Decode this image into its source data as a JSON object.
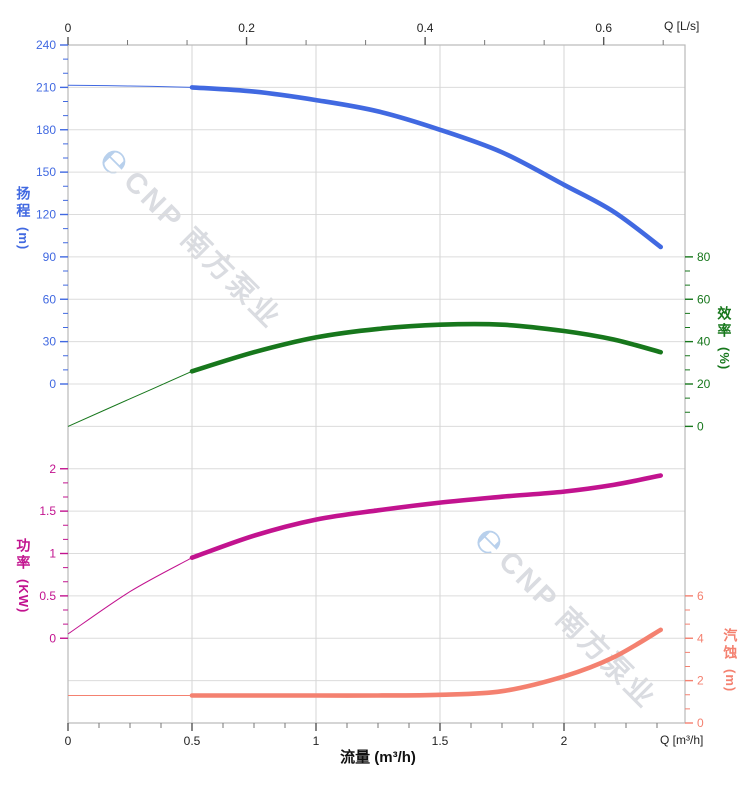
{
  "watermarks": {
    "logo_glyph": "℮",
    "text": "CNP 南方泵业"
  },
  "chart_data": {
    "type": "line",
    "title": "",
    "grid": true,
    "legend": "none",
    "x_axis": {
      "bottom_label": "流量 (m³/h)",
      "bottom_unit": "Q [m³/h]",
      "bottom_ticks": [
        0,
        0.5,
        1,
        1.5,
        2
      ],
      "bottom_minor_per_major": 3,
      "top_unit": "Q [L/s]",
      "top_ticks": [
        0,
        0.2,
        0.4,
        0.6
      ],
      "top_minor_per_major": 2,
      "m3h_per_ls": 3.6,
      "x_max_m3h": 2.49
    },
    "y_axes": [
      {
        "id": "head",
        "label": "扬程",
        "unit": "(m)",
        "side": "left",
        "color": "#4169E1",
        "ticks": [
          240,
          210,
          180,
          150,
          120,
          90,
          60,
          30,
          0
        ],
        "top_row": 0,
        "bottom_row": 8,
        "minor_per_major": 2
      },
      {
        "id": "efficiency",
        "label": "效率",
        "unit": "(%)",
        "side": "right",
        "color": "#17771C",
        "ticks": [
          80,
          60,
          40,
          20,
          0
        ],
        "top_row": 5,
        "bottom_row": 9,
        "minor_per_major": 2
      },
      {
        "id": "power",
        "label": "功率",
        "unit": "(KW)",
        "side": "left",
        "color": "#C2138F",
        "ticks": [
          2,
          1.5,
          1,
          0.5,
          0
        ],
        "top_row": 10,
        "bottom_row": 14,
        "minor_per_major": 2
      },
      {
        "id": "npsh",
        "label": "汽蚀",
        "unit": "(m)",
        "side": "right",
        "color": "#F48170",
        "ticks": [
          6,
          4,
          2,
          0
        ],
        "top_row": 13,
        "bottom_row": 16,
        "minor_per_major": 2
      }
    ],
    "series": [
      {
        "name": "head",
        "axis": "head",
        "color": "#4169E1",
        "thick_from": 0.5,
        "q": [
          0,
          0.25,
          0.5,
          0.75,
          1,
          1.25,
          1.5,
          1.75,
          2,
          2.2,
          2.39
        ],
        "values": [
          211.5,
          211,
          210,
          207,
          201,
          193,
          180,
          164,
          141,
          122,
          97
        ]
      },
      {
        "name": "efficiency",
        "axis": "efficiency",
        "color": "#17771C",
        "thick_from": 0.5,
        "q": [
          0,
          0.25,
          0.5,
          0.75,
          1,
          1.25,
          1.5,
          1.75,
          2,
          2.2,
          2.39
        ],
        "values": [
          0,
          13,
          26,
          35,
          42,
          46,
          48,
          48,
          45,
          41,
          35
        ]
      },
      {
        "name": "power",
        "axis": "power",
        "color": "#C2138F",
        "thick_from": 0.5,
        "q": [
          0,
          0.25,
          0.5,
          0.75,
          1,
          1.25,
          1.5,
          1.75,
          2,
          2.2,
          2.39
        ],
        "values": [
          0.05,
          0.55,
          0.95,
          1.21,
          1.4,
          1.51,
          1.6,
          1.67,
          1.73,
          1.81,
          1.92
        ]
      },
      {
        "name": "npsh",
        "axis": "npsh",
        "color": "#F48170",
        "thick_from": 0.5,
        "q": [
          0,
          0.25,
          0.5,
          0.75,
          1,
          1.25,
          1.5,
          1.75,
          2,
          2.2,
          2.39
        ],
        "values": [
          1.3,
          1.3,
          1.3,
          1.3,
          1.3,
          1.3,
          1.33,
          1.5,
          2.2,
          3.1,
          4.4
        ]
      }
    ]
  }
}
